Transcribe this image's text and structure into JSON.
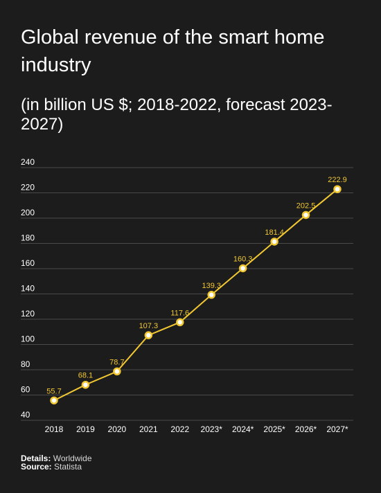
{
  "header": {
    "title": "Global revenue of the smart home industry",
    "subtitle": "(in billion US $; 2018-2022, forecast 2023-2027)"
  },
  "chart_data": {
    "type": "line",
    "categories": [
      "2018",
      "2019",
      "2020",
      "2021",
      "2022",
      "2023*",
      "2024*",
      "2025*",
      "2026*",
      "2027*"
    ],
    "values": [
      55.7,
      68.1,
      78.7,
      107.3,
      117.6,
      139.3,
      160.3,
      181.4,
      202.5,
      222.9
    ],
    "data_labels": [
      "55.7",
      "68.1",
      "78.7",
      "107.3",
      "117.6",
      "139.3",
      "160.3",
      "181.4",
      "202.5",
      "222.9"
    ],
    "y_ticks": [
      40,
      60,
      80,
      100,
      120,
      140,
      160,
      180,
      200,
      220,
      240
    ],
    "ylim": [
      40,
      240
    ],
    "grid": true,
    "colors": {
      "line": "#f2c832",
      "label": "#f2c832",
      "point_fill": "#ffffff",
      "grid": "#4a4a4a",
      "background": "#1c1c1c"
    }
  },
  "footer": {
    "details_label": "Details:",
    "details_value": "Worldwide",
    "source_label": "Source:",
    "source_value": "Statista"
  }
}
